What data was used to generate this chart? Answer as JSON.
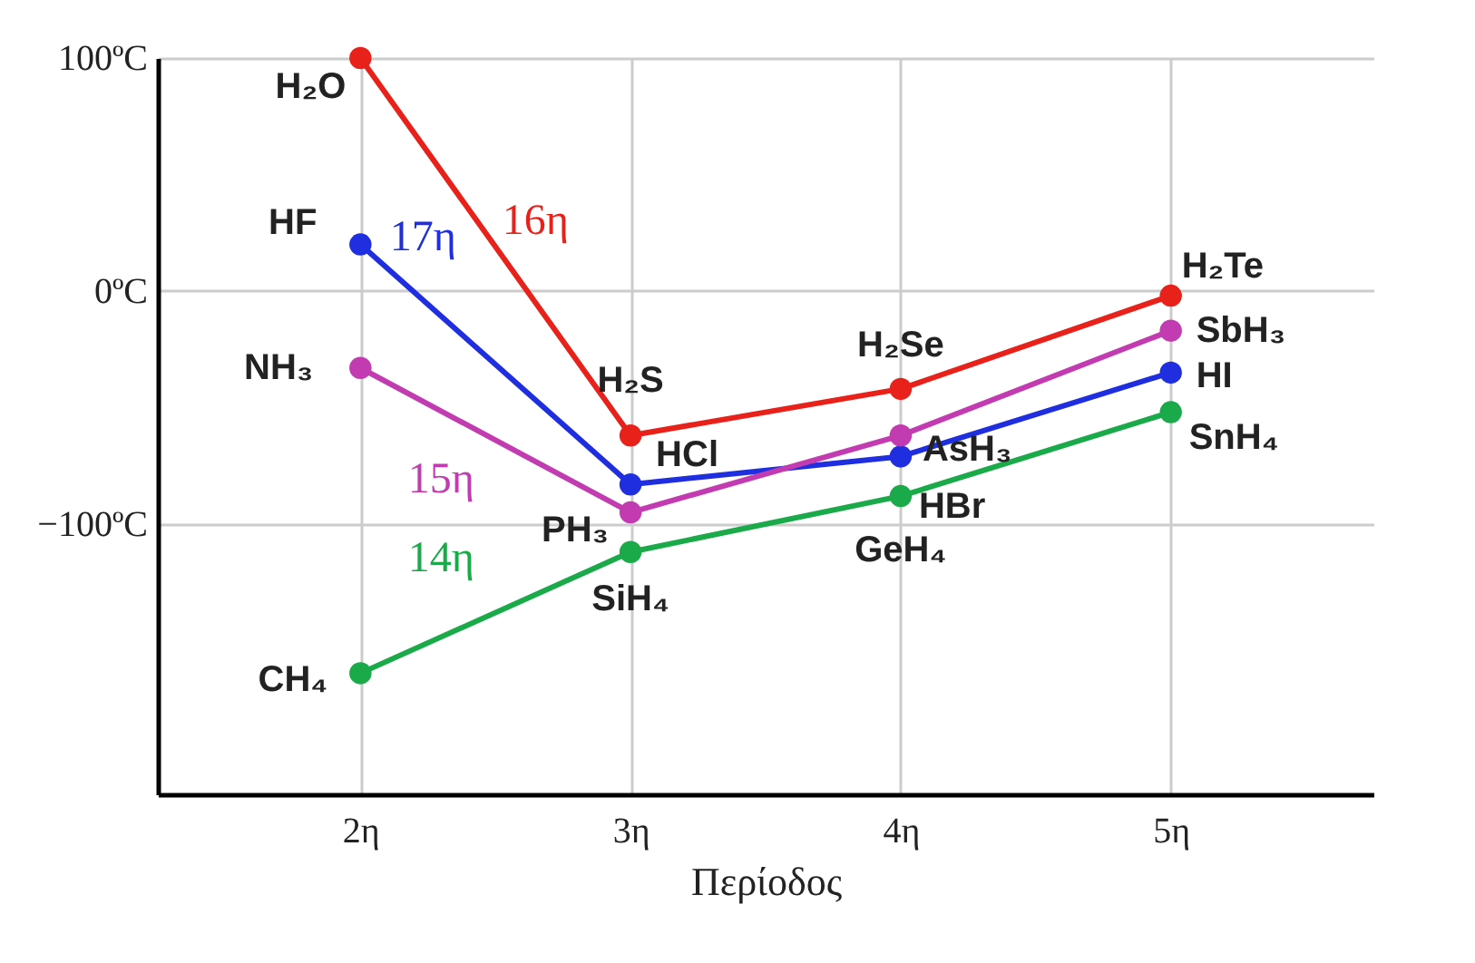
{
  "chart_data": {
    "type": "line",
    "xlabel": "Περίοδος",
    "categories": [
      "2η",
      "3η",
      "4η",
      "5η"
    ],
    "series": [
      {
        "name": "16η",
        "color": "#e8221b",
        "values": [
          100,
          -62,
          -42,
          -2
        ]
      },
      {
        "name": "17η",
        "color": "#1f2fe0",
        "values": [
          20,
          -83,
          -71,
          -35
        ]
      },
      {
        "name": "15η",
        "color": "#c23bb0",
        "values": [
          -33,
          -95,
          -62,
          -17
        ]
      },
      {
        "name": "14η",
        "color": "#1aaa4a",
        "values": [
          -164,
          -112,
          -88,
          -52
        ]
      }
    ],
    "ylim": [
      -216,
      100
    ],
    "yticks": [
      {
        "value": -100,
        "label": "−100ºC"
      },
      {
        "value": 0,
        "label": "0ºC"
      },
      {
        "value": 100,
        "label": "100ºC"
      }
    ],
    "annotations": [
      {
        "text": "H₂O",
        "x": "2η",
        "y": 100
      },
      {
        "text": "HF",
        "x": "2η",
        "y": 20
      },
      {
        "text": "NH₃",
        "x": "2η",
        "y": -33
      },
      {
        "text": "CH₄",
        "x": "2η",
        "y": -164
      },
      {
        "text": "H₂S",
        "x": "3η",
        "y": -62
      },
      {
        "text": "HCl",
        "x": "3η",
        "y": -83
      },
      {
        "text": "PH₃",
        "x": "3η",
        "y": -95
      },
      {
        "text": "SiH₄",
        "x": "3η",
        "y": -112
      },
      {
        "text": "H₂Se",
        "x": "4η",
        "y": -42
      },
      {
        "text": "AsH₃",
        "x": "4η",
        "y": -62
      },
      {
        "text": "HBr",
        "x": "4η",
        "y": -71
      },
      {
        "text": "GeH₄",
        "x": "4η",
        "y": -88
      },
      {
        "text": "H₂Te",
        "x": "5η",
        "y": -2
      },
      {
        "text": "SbH₃",
        "x": "5η",
        "y": -17
      },
      {
        "text": "HI",
        "x": "5η",
        "y": -35
      },
      {
        "text": "SnH₄",
        "x": "5η",
        "y": -52
      }
    ],
    "grid": true,
    "marker": "circle",
    "line_style": "solid"
  }
}
